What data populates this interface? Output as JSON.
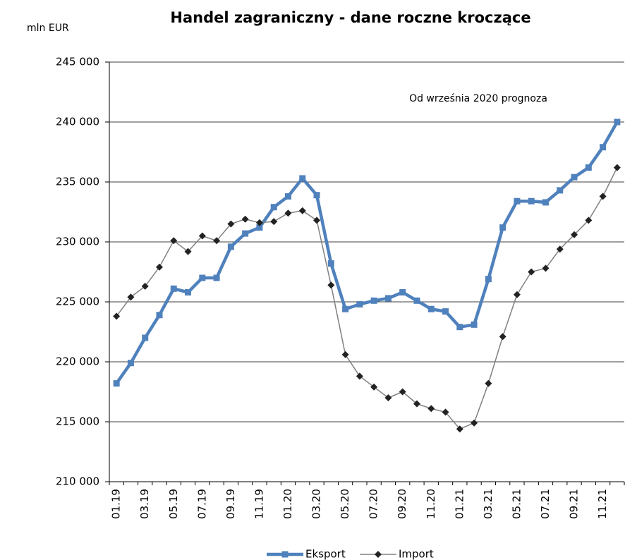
{
  "chart_data": {
    "type": "line",
    "title": "Handel zagraniczny - dane roczne kroczące",
    "y_label": "mln EUR",
    "annotation": "Od września 2020 prognoza",
    "categories": [
      "01.19",
      null,
      "03.19",
      null,
      "05.19",
      null,
      "07.19",
      null,
      "09.19",
      null,
      "11.19",
      null,
      "01.20",
      null,
      "03.20",
      null,
      "05.20",
      null,
      "07.20",
      null,
      "09.20",
      null,
      "11.20",
      null,
      "01.21",
      null,
      "03.21",
      null,
      "05.21",
      null,
      "07.21",
      null,
      "09.21",
      null,
      "11.21",
      null
    ],
    "series": [
      {
        "name": "Eksport",
        "color": "#4f81bd",
        "marker": "square",
        "values": [
          218200,
          219900,
          222000,
          223900,
          226100,
          225800,
          227000,
          227000,
          229600,
          230700,
          231200,
          232900,
          233800,
          235300,
          233900,
          228200,
          224400,
          224800,
          225100,
          225300,
          225800,
          225100,
          224400,
          224200,
          222900,
          223100,
          226900,
          231200,
          233400,
          233400,
          233300,
          234300,
          235400,
          236200,
          237900,
          240000
        ]
      },
      {
        "name": "Import",
        "color": "#808080",
        "marker": "diamond",
        "values": [
          223800,
          225400,
          226300,
          227900,
          230100,
          229200,
          230500,
          230100,
          231500,
          231900,
          231600,
          231700,
          232400,
          232600,
          231800,
          226400,
          220600,
          218800,
          217900,
          217000,
          217500,
          216500,
          216100,
          215800,
          214400,
          214900,
          218200,
          222100,
          225600,
          227500,
          227800,
          229400,
          230600,
          231800,
          233800,
          236200
        ]
      }
    ],
    "ylim": [
      210000,
      245000
    ],
    "yticks": [
      {
        "value": 210000,
        "label": "210 000"
      },
      {
        "value": 215000,
        "label": "215 000"
      },
      {
        "value": 220000,
        "label": "220 000"
      },
      {
        "value": 225000,
        "label": "225 000"
      },
      {
        "value": 230000,
        "label": "230 000"
      },
      {
        "value": 235000,
        "label": "235 000"
      },
      {
        "value": 240000,
        "label": "240 000"
      },
      {
        "value": 245000,
        "label": "245 000"
      }
    ],
    "grid": true,
    "legend": "bottom"
  }
}
